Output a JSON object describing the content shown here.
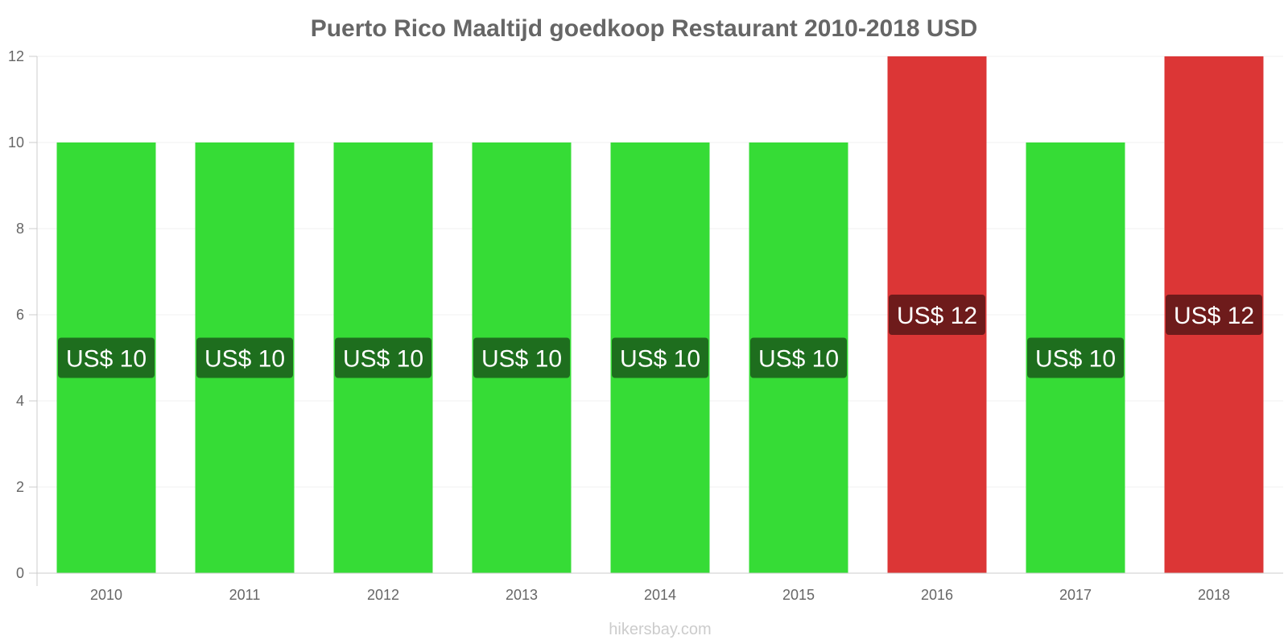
{
  "chart_data": {
    "type": "bar",
    "title": "Puerto Rico Maaltijd goedkoop Restaurant 2010-2018 USD",
    "categories": [
      "2010",
      "2011",
      "2012",
      "2013",
      "2014",
      "2015",
      "2016",
      "2017",
      "2018"
    ],
    "values": [
      10,
      10,
      10,
      10,
      10,
      10,
      12,
      10,
      12
    ],
    "data_labels": [
      "US$ 10",
      "US$ 10",
      "US$ 10",
      "US$ 10",
      "US$ 10",
      "US$ 10",
      "US$ 12",
      "US$ 10",
      "US$ 12"
    ],
    "ylim": [
      0,
      12
    ],
    "yticks": [
      "0",
      "2",
      "4",
      "6",
      "8",
      "10",
      "12"
    ],
    "grid": true,
    "legend": "none",
    "colors": {
      "decrease_or_same": "#36dc36",
      "increase": "#dc3636",
      "label_bg_green": "#1e6e1e",
      "label_bg_red": "#6e1b1b"
    }
  },
  "credit": "hikersbay.com"
}
